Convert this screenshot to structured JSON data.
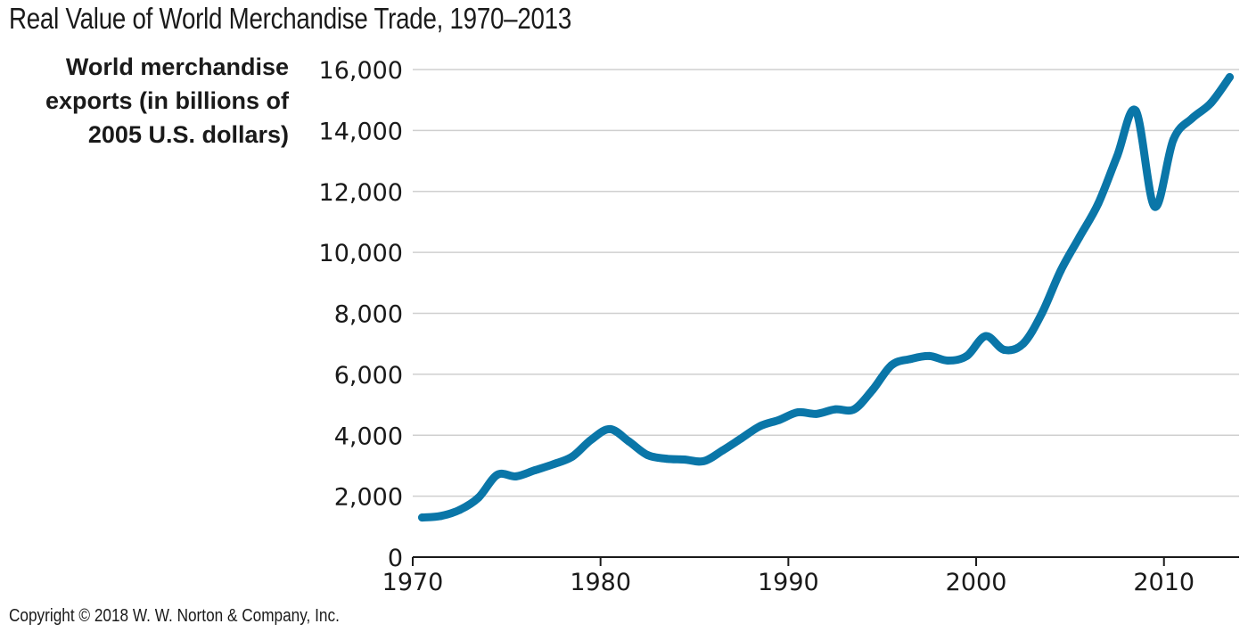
{
  "chart_data": {
    "type": "line",
    "title": "Real Value of World Merchandise Trade, 1970–2013",
    "ylabel_lines": [
      "World merchandise",
      "exports (in billions of",
      "2005 U.S. dollars)"
    ],
    "xlabel": "",
    "xlim": [
      1970,
      2013
    ],
    "ylim": [
      0,
      16000
    ],
    "x_ticks": [
      1970,
      1980,
      1990,
      2000,
      2010
    ],
    "y_ticks": [
      0,
      2000,
      4000,
      6000,
      8000,
      10000,
      12000,
      14000,
      16000
    ],
    "y_tick_labels": [
      "0",
      "2,000",
      "4,000",
      "6,000",
      "8,000",
      "10,000",
      "12,000",
      "14,000",
      "16,000"
    ],
    "grid": "horizontal",
    "series": [
      {
        "color": "#0a76a8",
        "x": [
          1970,
          1971,
          1972,
          1973,
          1974,
          1975,
          1976,
          1977,
          1978,
          1979,
          1980,
          1981,
          1982,
          1983,
          1984,
          1985,
          1986,
          1987,
          1988,
          1989,
          1990,
          1991,
          1992,
          1993,
          1994,
          1995,
          1996,
          1997,
          1998,
          1999,
          2000,
          2001,
          2002,
          2003,
          2004,
          2005,
          2006,
          2007,
          2008,
          2009,
          2010,
          2011,
          2012,
          2013
        ],
        "y": [
          1300,
          1350,
          1550,
          1950,
          2700,
          2650,
          2850,
          3050,
          3300,
          3850,
          4200,
          3800,
          3350,
          3230,
          3200,
          3150,
          3500,
          3900,
          4300,
          4500,
          4750,
          4700,
          4850,
          4850,
          5500,
          6300,
          6500,
          6600,
          6450,
          6600,
          7250,
          6800,
          7000,
          8000,
          9400,
          10500,
          11600,
          13150,
          14650,
          11500,
          13700,
          14400,
          14900,
          15750
        ]
      }
    ]
  },
  "copyright": "Copyright © 2018 W. W. Norton & Company, Inc."
}
